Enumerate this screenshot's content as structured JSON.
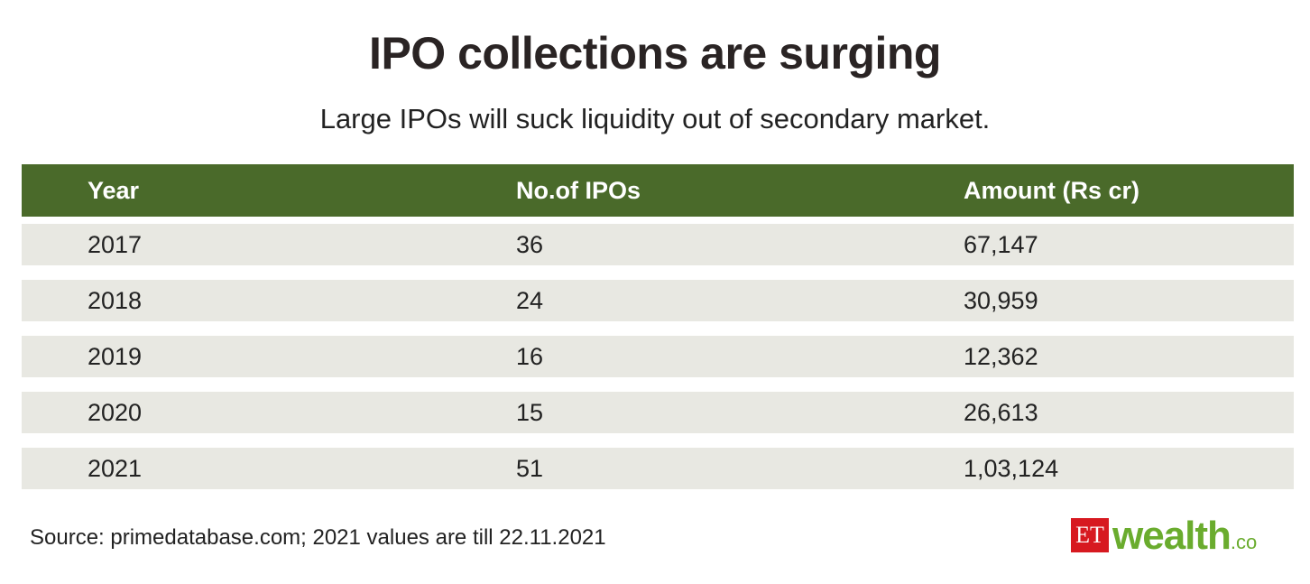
{
  "title": "IPO collections are surging",
  "subtitle": "Large IPOs will suck liquidity out of secondary market.",
  "table": {
    "headers": [
      "Year",
      "No.of IPOs",
      "Amount (Rs cr)"
    ],
    "rows": [
      [
        "2017",
        "36",
        "67,147"
      ],
      [
        "2018",
        "24",
        "30,959"
      ],
      [
        "2019",
        "16",
        "12,362"
      ],
      [
        "2020",
        "15",
        "26,613"
      ],
      [
        "2021",
        "51",
        "1,03,124"
      ]
    ]
  },
  "source": "Source: primedatabase.com; 2021 values are till 22.11.2021",
  "logo": {
    "et": "ET",
    "wealth": "wealth",
    "suffix": ".co"
  }
}
